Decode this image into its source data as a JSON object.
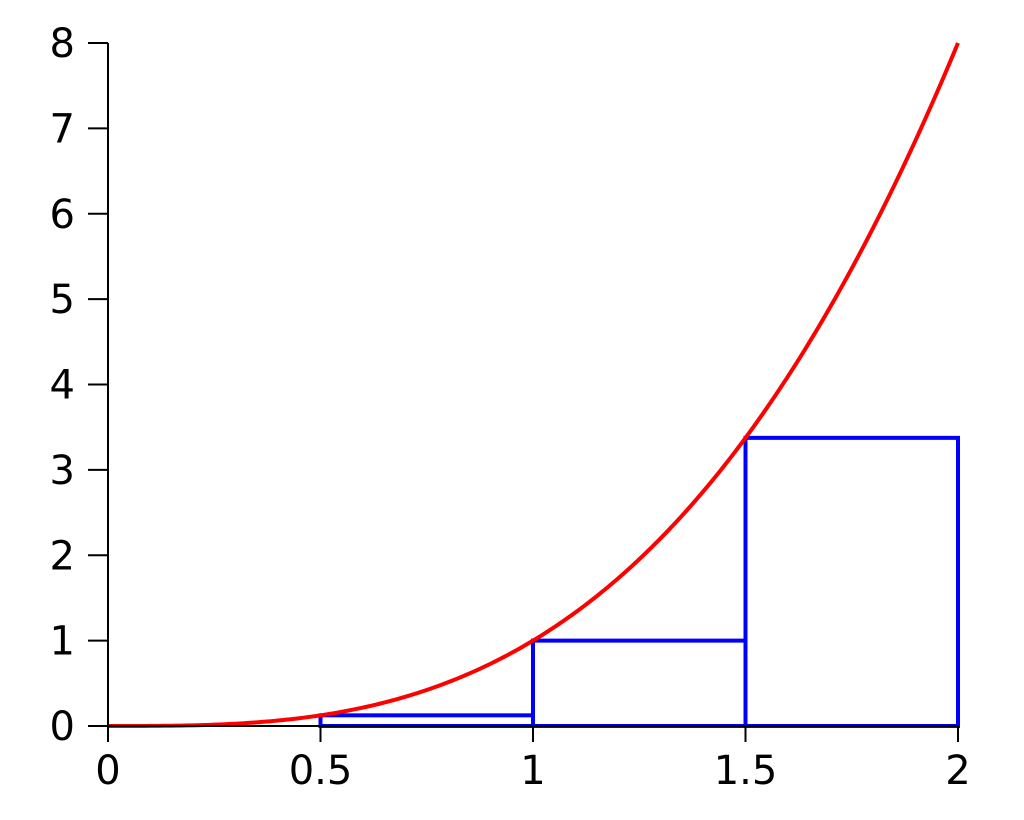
{
  "chart_data": {
    "type": "line",
    "title": "",
    "xlabel": "",
    "ylabel": "",
    "xlim": [
      0,
      2
    ],
    "ylim": [
      0,
      8
    ],
    "x_ticks": [
      {
        "value": 0,
        "label": "0"
      },
      {
        "value": 0.5,
        "label": "0.5"
      },
      {
        "value": 1,
        "label": "1"
      },
      {
        "value": 1.5,
        "label": "1.5"
      },
      {
        "value": 2,
        "label": "2"
      }
    ],
    "y_ticks": [
      {
        "value": 0,
        "label": "0"
      },
      {
        "value": 1,
        "label": "1"
      },
      {
        "value": 2,
        "label": "2"
      },
      {
        "value": 3,
        "label": "3"
      },
      {
        "value": 4,
        "label": "4"
      },
      {
        "value": 5,
        "label": "5"
      },
      {
        "value": 6,
        "label": "6"
      },
      {
        "value": 7,
        "label": "7"
      },
      {
        "value": 8,
        "label": "8"
      }
    ],
    "grid": false,
    "curve": {
      "function": "x^3",
      "color": "#ff0000",
      "points": [
        {
          "x": 0,
          "y": 0
        },
        {
          "x": 0.1,
          "y": 0.001
        },
        {
          "x": 0.2,
          "y": 0.008
        },
        {
          "x": 0.3,
          "y": 0.027
        },
        {
          "x": 0.4,
          "y": 0.064
        },
        {
          "x": 0.5,
          "y": 0.125
        },
        {
          "x": 0.6,
          "y": 0.216
        },
        {
          "x": 0.7,
          "y": 0.343
        },
        {
          "x": 0.8,
          "y": 0.512
        },
        {
          "x": 0.9,
          "y": 0.729
        },
        {
          "x": 1.0,
          "y": 1.0
        },
        {
          "x": 1.1,
          "y": 1.331
        },
        {
          "x": 1.2,
          "y": 1.728
        },
        {
          "x": 1.3,
          "y": 2.197
        },
        {
          "x": 1.4,
          "y": 2.744
        },
        {
          "x": 1.5,
          "y": 3.375
        },
        {
          "x": 1.6,
          "y": 4.096
        },
        {
          "x": 1.7,
          "y": 4.913
        },
        {
          "x": 1.8,
          "y": 5.832
        },
        {
          "x": 1.9,
          "y": 6.859
        },
        {
          "x": 2.0,
          "y": 8.0
        }
      ]
    },
    "rectangles": {
      "color": "#0000ff",
      "items": [
        {
          "x0": 0,
          "x1": 0.5,
          "height": 0
        },
        {
          "x0": 0.5,
          "x1": 1,
          "height": 0.125
        },
        {
          "x0": 1,
          "x1": 1.5,
          "height": 1
        },
        {
          "x0": 1.5,
          "x1": 2,
          "height": 3.375
        }
      ]
    }
  }
}
